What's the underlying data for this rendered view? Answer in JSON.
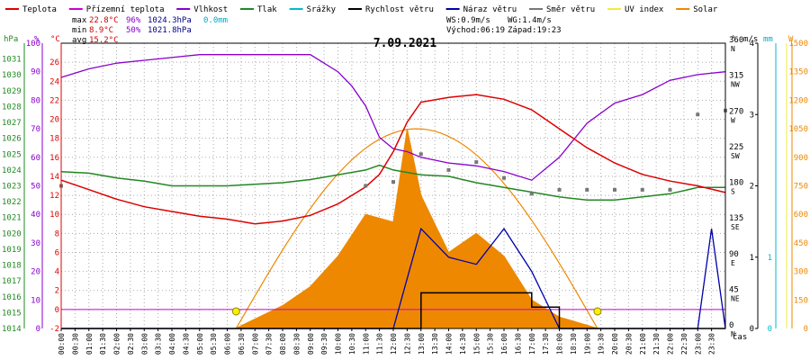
{
  "legend": [
    {
      "label": "Teplota",
      "color": "#dd0000"
    },
    {
      "label": "Přízemní teplota",
      "color": "#cc00cc"
    },
    {
      "label": "Vlhkost",
      "color": "#8800cc"
    },
    {
      "label": "Tlak",
      "color": "#228822"
    },
    {
      "label": "Srážky",
      "color": "#00bbcc"
    },
    {
      "label": "Rychlost větru",
      "color": "#000000"
    },
    {
      "label": "Náraz větru",
      "color": "#0000aa"
    },
    {
      "label": "Směr větru",
      "color": "#777777"
    },
    {
      "label": "UV index",
      "color": "#eeee44"
    },
    {
      "label": "Solar",
      "color": "#ee8800"
    }
  ],
  "stats": {
    "max": {
      "label": "max",
      "temp": "22.8°C",
      "hum": "96%",
      "press": "1024.3hPa",
      "rain": "0.0mm"
    },
    "min": {
      "label": "min",
      "temp": "8.9°C",
      "hum": "50%",
      "press": "1021.8hPa"
    },
    "avg": {
      "label": "avg",
      "temp": "15.2°C"
    }
  },
  "wind_info": {
    "ws": "WS:0.9m/s",
    "wg": "WG:1.4m/s",
    "sunrise": "Východ:06:19",
    "sunset": "Západ:19:23"
  },
  "date": "7.09.2021",
  "axis_units": {
    "hpa": "hPa",
    "pct": "%",
    "degc": "°C",
    "deg": "°",
    "ms": "m/s",
    "mm": "mm",
    "w": "W",
    "time": "čas"
  },
  "chart_data": {
    "type": "line",
    "title": "7.09.2021",
    "x_ticks": [
      "00:00",
      "00:30",
      "01:00",
      "01:30",
      "02:00",
      "02:30",
      "03:00",
      "03:30",
      "04:00",
      "04:30",
      "05:00",
      "05:30",
      "06:00",
      "06:30",
      "07:00",
      "07:30",
      "08:00",
      "08:30",
      "09:00",
      "09:30",
      "10:00",
      "10:30",
      "11:00",
      "11:30",
      "12:00",
      "12:30",
      "13:00",
      "13:30",
      "14:00",
      "14:30",
      "15:00",
      "15:30",
      "16:00",
      "16:30",
      "17:00",
      "17:30",
      "18:00",
      "18:30",
      "19:00",
      "19:30",
      "20:00",
      "20:30",
      "21:00",
      "21:30",
      "22:00",
      "22:30",
      "23:00",
      "23:30"
    ],
    "axes": {
      "temperature_c": {
        "ticks": [
          -2,
          0,
          2,
          4,
          6,
          8,
          10,
          12,
          14,
          16,
          18,
          20,
          22,
          24,
          26
        ],
        "range": [
          -2,
          28
        ]
      },
      "humidity_pct": {
        "ticks": [
          0,
          10,
          20,
          30,
          40,
          50,
          60,
          70,
          80,
          90,
          100
        ],
        "range": [
          0,
          100
        ]
      },
      "pressure_hpa": {
        "ticks": [
          1014,
          1015,
          1016,
          1017,
          1018,
          1019,
          1020,
          1021,
          1022,
          1023,
          1024,
          1025,
          1026,
          1027,
          1028,
          1029,
          1030,
          1031
        ],
        "range": [
          1014,
          1032
        ]
      },
      "wind_direction_deg": {
        "ticks": [
          0,
          45,
          90,
          135,
          180,
          225,
          270,
          315,
          360
        ],
        "labels": [
          "N",
          "NE",
          "E",
          "SE",
          "S",
          "SW",
          "W",
          "NW",
          "N"
        ],
        "range": [
          0,
          360
        ]
      },
      "wind_speed_ms": {
        "ticks": [
          0,
          1,
          2,
          3,
          4
        ],
        "range": [
          0,
          4
        ]
      },
      "rain_mm": {
        "ticks": [
          0,
          1
        ],
        "range": [
          0,
          1
        ]
      },
      "solar_w": {
        "ticks": [
          0,
          150,
          300,
          450,
          600,
          750,
          900,
          1050,
          1200,
          1350,
          1500
        ],
        "range": [
          0,
          1500
        ]
      }
    },
    "series": [
      {
        "name": "Teplota",
        "unit": "°C",
        "x": [
          0,
          1,
          2,
          3,
          4,
          5,
          6,
          7,
          8,
          9,
          10,
          11,
          11.5,
          12,
          12.5,
          13,
          14,
          15,
          16,
          17,
          18,
          19,
          20,
          21,
          22,
          23,
          24
        ],
        "y": [
          13.6,
          12.6,
          11.6,
          10.8,
          10.3,
          9.8,
          9.5,
          9.0,
          9.3,
          9.9,
          11.1,
          12.9,
          14.2,
          16.6,
          19.7,
          21.8,
          22.3,
          22.6,
          22.1,
          21.0,
          19.0,
          17.0,
          15.4,
          14.2,
          13.5,
          13.0,
          12.3
        ]
      },
      {
        "name": "Vlhkost",
        "unit": "%",
        "x": [
          0,
          1,
          2,
          3,
          4,
          5,
          6,
          7,
          8,
          9,
          10,
          10.5,
          11,
          11.5,
          12,
          12.5,
          13,
          14,
          15,
          16,
          17,
          18,
          19,
          20,
          21,
          22,
          23,
          24
        ],
        "y": [
          88,
          91,
          93,
          94,
          95,
          96,
          96,
          96,
          96,
          96,
          90,
          85,
          78,
          67,
          63,
          62,
          60,
          58,
          57,
          55,
          52,
          60,
          72,
          79,
          82,
          87,
          89,
          90
        ]
      },
      {
        "name": "Tlak",
        "unit": "hPa",
        "x": [
          0,
          1,
          2,
          3,
          4,
          5,
          6,
          7,
          8,
          9,
          10,
          11,
          11.5,
          12,
          13,
          14,
          15,
          16,
          17,
          18,
          19,
          20,
          21,
          22,
          23,
          24
        ],
        "y": [
          1023.9,
          1023.8,
          1023.5,
          1023.3,
          1023.0,
          1023.0,
          1023.0,
          1023.1,
          1023.2,
          1023.4,
          1023.7,
          1024.0,
          1024.3,
          1024.0,
          1023.7,
          1023.6,
          1023.2,
          1022.9,
          1022.6,
          1022.3,
          1022.1,
          1022.1,
          1022.3,
          1022.5,
          1022.9,
          1022.9
        ]
      },
      {
        "name": "Směr větru",
        "unit": "°",
        "x": [
          0,
          11,
          12,
          13,
          14,
          15,
          16,
          17,
          18,
          19,
          20,
          21,
          22,
          23,
          24
        ],
        "y": [
          180,
          180,
          185,
          220,
          200,
          210,
          190,
          170,
          175,
          175,
          175,
          175,
          175,
          270,
          275
        ]
      },
      {
        "name": "Rychlost větru",
        "unit": "m/s",
        "x": [
          0,
          12,
          13,
          14,
          15,
          16,
          17,
          18,
          24
        ],
        "y": [
          0,
          0,
          0.5,
          0.5,
          0.5,
          0.5,
          0.3,
          0,
          0
        ]
      },
      {
        "name": "Náraz větru",
        "unit": "m/s",
        "x": [
          0,
          12,
          13,
          14,
          15,
          16,
          17,
          18,
          23,
          23.5,
          24
        ],
        "y": [
          0,
          0,
          1.4,
          1.0,
          0.9,
          1.4,
          0.8,
          0,
          0,
          1.4,
          0
        ]
      },
      {
        "name": "Solar",
        "unit": "W",
        "x": [
          6.3,
          7,
          8,
          9,
          10,
          11,
          12,
          12.5,
          13,
          13.5,
          14,
          15,
          16,
          17,
          18,
          19.4
        ],
        "y": [
          0,
          50,
          120,
          220,
          380,
          600,
          560,
          1050,
          700,
          550,
          400,
          500,
          380,
          150,
          60,
          0
        ]
      },
      {
        "name": "UV index",
        "unit": "",
        "x": [
          0,
          24
        ],
        "y": [
          0,
          0
        ]
      }
    ],
    "sunrise_h": 6.32,
    "sunset_h": 19.38
  }
}
